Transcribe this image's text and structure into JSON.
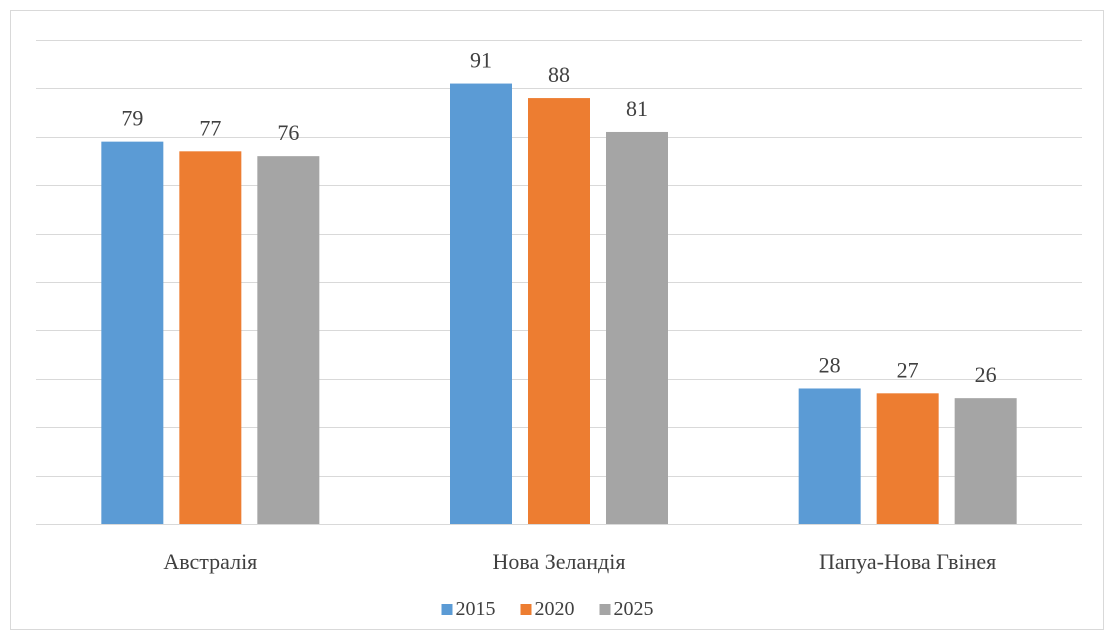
{
  "chart_data": {
    "type": "bar",
    "categories": [
      "Австралія",
      "Нова Зеландія",
      "Папуа-Нова Гвінея"
    ],
    "series": [
      {
        "name": "2015",
        "values": [
          79,
          91,
          28
        ],
        "color": "#5b9bd5"
      },
      {
        "name": "2020",
        "values": [
          77,
          88,
          27
        ],
        "color": "#ed7d31"
      },
      {
        "name": "2025",
        "values": [
          76,
          81,
          26
        ],
        "color": "#a5a5a5"
      }
    ],
    "ylim": [
      0,
      100
    ],
    "grid": true,
    "legend_position": "bottom"
  }
}
